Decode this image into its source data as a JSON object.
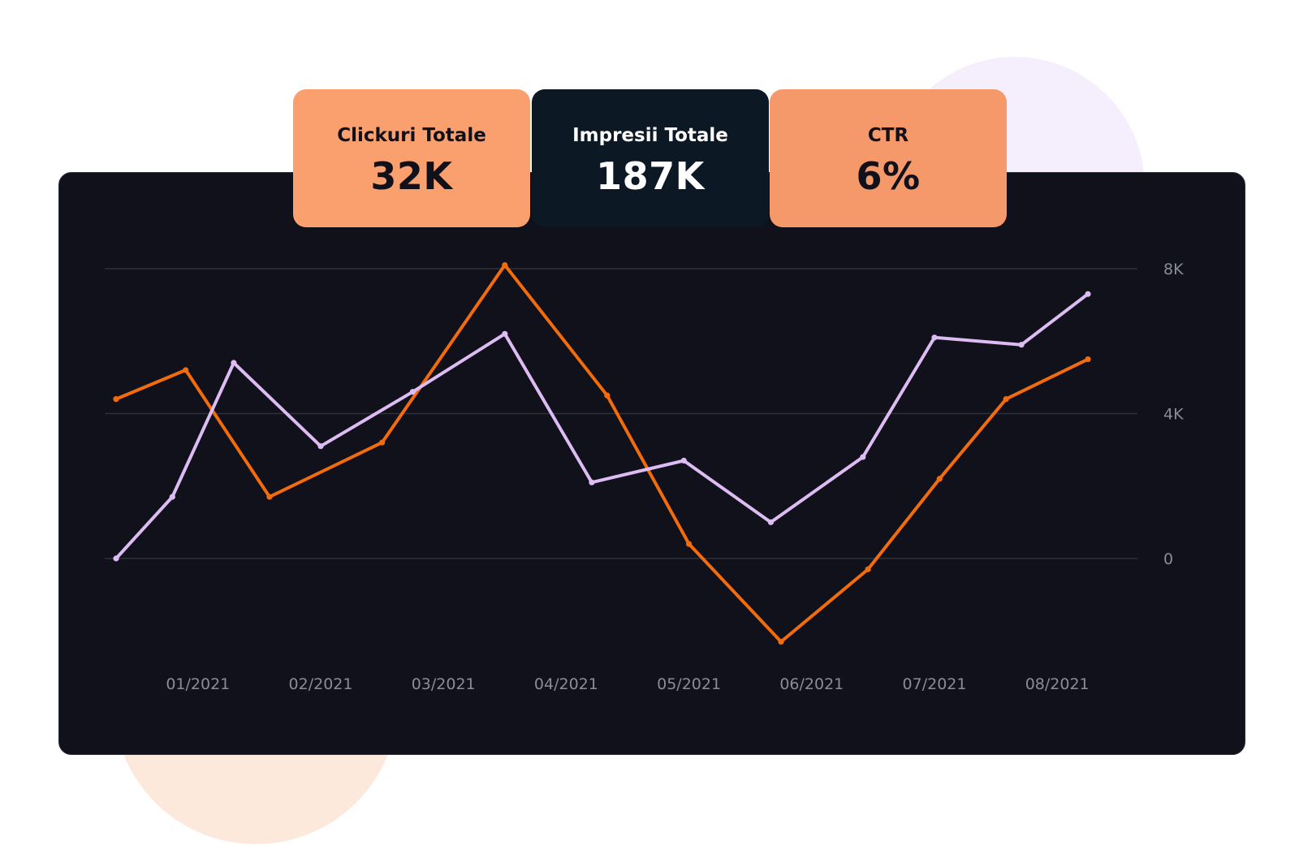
{
  "kpis": {
    "clicks": {
      "label": "Clickuri Totale",
      "value": "32K"
    },
    "impressions": {
      "label": "Impresii Totale",
      "value": "187K"
    },
    "ctr": {
      "label": "CTR",
      "value": "6%"
    }
  },
  "colors": {
    "orange_line": "#f26c0c",
    "purple_line": "#dcbcf2",
    "card_bg": "#10111a",
    "kpi_orange": "#f9a06e",
    "kpi_dark": "#0c1824",
    "gridline": "#2e303a"
  },
  "chart_data": {
    "type": "line",
    "title": "",
    "xlabel": "",
    "ylabel": "",
    "ylim": [
      -2400,
      8000
    ],
    "grid": true,
    "y_ticks": [
      {
        "value": 8000,
        "label": "8K"
      },
      {
        "value": 4000,
        "label": "4K"
      },
      {
        "value": 0,
        "label": "0"
      }
    ],
    "x_ticks": [
      {
        "x": 0.8,
        "label": "01/2021"
      },
      {
        "x": 2.0,
        "label": "02/2021"
      },
      {
        "x": 3.2,
        "label": "03/2021"
      },
      {
        "x": 4.4,
        "label": "04/2021"
      },
      {
        "x": 5.6,
        "label": "05/2021"
      },
      {
        "x": 6.8,
        "label": "06/2021"
      },
      {
        "x": 8.0,
        "label": "07/2021"
      },
      {
        "x": 9.2,
        "label": "08/2021"
      }
    ],
    "xlim": [
      0,
      10
    ],
    "series": [
      {
        "color": "#f26c0c",
        "points": [
          {
            "x": 0.0,
            "y": 4400
          },
          {
            "x": 0.68,
            "y": 5200
          },
          {
            "x": 1.5,
            "y": 1700
          },
          {
            "x": 2.6,
            "y": 3200
          },
          {
            "x": 3.8,
            "y": 8100
          },
          {
            "x": 4.8,
            "y": 4500
          },
          {
            "x": 5.6,
            "y": 400
          },
          {
            "x": 6.5,
            "y": -2300
          },
          {
            "x": 7.35,
            "y": -300
          },
          {
            "x": 8.05,
            "y": 2200
          },
          {
            "x": 8.7,
            "y": 4400
          },
          {
            "x": 9.5,
            "y": 5500
          }
        ]
      },
      {
        "color": "#dcbcf2",
        "points": [
          {
            "x": 0.0,
            "y": 0
          },
          {
            "x": 0.55,
            "y": 1700
          },
          {
            "x": 1.15,
            "y": 5400
          },
          {
            "x": 2.0,
            "y": 3100
          },
          {
            "x": 2.9,
            "y": 4600
          },
          {
            "x": 3.8,
            "y": 6200
          },
          {
            "x": 4.65,
            "y": 2100
          },
          {
            "x": 5.55,
            "y": 2700
          },
          {
            "x": 6.4,
            "y": 1000
          },
          {
            "x": 7.3,
            "y": 2800
          },
          {
            "x": 8.0,
            "y": 6100
          },
          {
            "x": 8.85,
            "y": 5900
          },
          {
            "x": 9.5,
            "y": 7300
          }
        ]
      }
    ]
  }
}
